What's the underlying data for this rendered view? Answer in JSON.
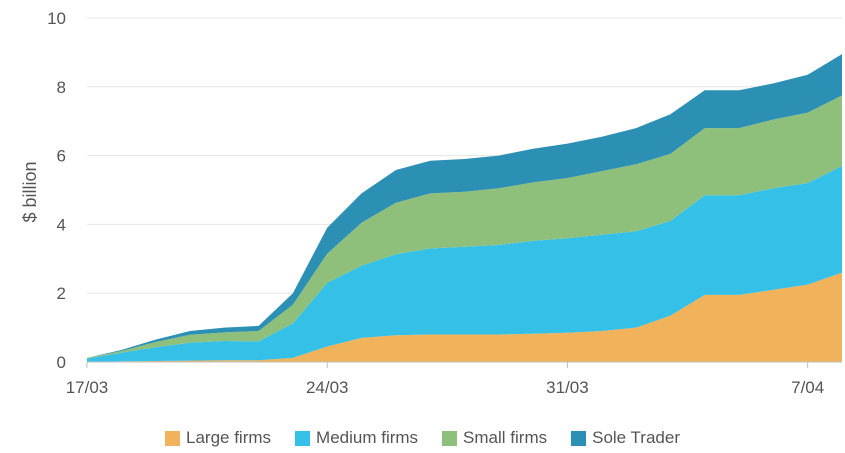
{
  "chart_data": {
    "type": "area",
    "stacked": true,
    "ylabel": "$ billion",
    "ylim": [
      0,
      10
    ],
    "yticks": [
      "0",
      "2",
      "4",
      "6",
      "8",
      "10"
    ],
    "x": [
      "17/03",
      "18/03",
      "19/03",
      "20/03",
      "21/03",
      "22/03",
      "23/03",
      "24/03",
      "25/03",
      "26/03",
      "27/03",
      "28/03",
      "29/03",
      "30/03",
      "31/03",
      "1/04",
      "2/04",
      "3/04",
      "4/04",
      "5/04",
      "6/04",
      "7/04",
      "8/04"
    ],
    "xticks": [
      {
        "label": "17/03",
        "index": 0
      },
      {
        "label": "24/03",
        "index": 7
      },
      {
        "label": "31/03",
        "index": 14
      },
      {
        "label": "7/04",
        "index": 21
      }
    ],
    "grid": true,
    "legend_position": "bottom",
    "series": [
      {
        "name": "Large firms",
        "color": "#f0b25a",
        "values": [
          0,
          0.02,
          0.03,
          0.04,
          0.05,
          0.05,
          0.12,
          0.45,
          0.7,
          0.78,
          0.8,
          0.8,
          0.8,
          0.82,
          0.85,
          0.9,
          1.0,
          1.35,
          1.95,
          1.95,
          2.1,
          2.25,
          2.6
        ]
      },
      {
        "name": "Medium firms",
        "color": "#35c0e8",
        "values": [
          0.1,
          0.25,
          0.4,
          0.52,
          0.56,
          0.55,
          1.0,
          1.85,
          2.1,
          2.35,
          2.5,
          2.55,
          2.6,
          2.7,
          2.75,
          2.8,
          2.8,
          2.75,
          2.9,
          2.9,
          2.95,
          2.95,
          3.1
        ]
      },
      {
        "name": "Small firms",
        "color": "#8ec07c",
        "values": [
          0.02,
          0.05,
          0.15,
          0.23,
          0.25,
          0.3,
          0.55,
          0.85,
          1.25,
          1.5,
          1.6,
          1.6,
          1.65,
          1.7,
          1.75,
          1.85,
          1.95,
          1.95,
          1.95,
          1.95,
          2.0,
          2.05,
          2.05
        ]
      },
      {
        "name": "Sole Trader",
        "color": "#2c8fb4",
        "values": [
          0,
          0.03,
          0.07,
          0.11,
          0.14,
          0.15,
          0.33,
          0.75,
          0.85,
          0.95,
          0.95,
          0.95,
          0.95,
          0.98,
          1.0,
          1.0,
          1.05,
          1.15,
          1.1,
          1.1,
          1.05,
          1.1,
          1.2
        ]
      }
    ]
  }
}
